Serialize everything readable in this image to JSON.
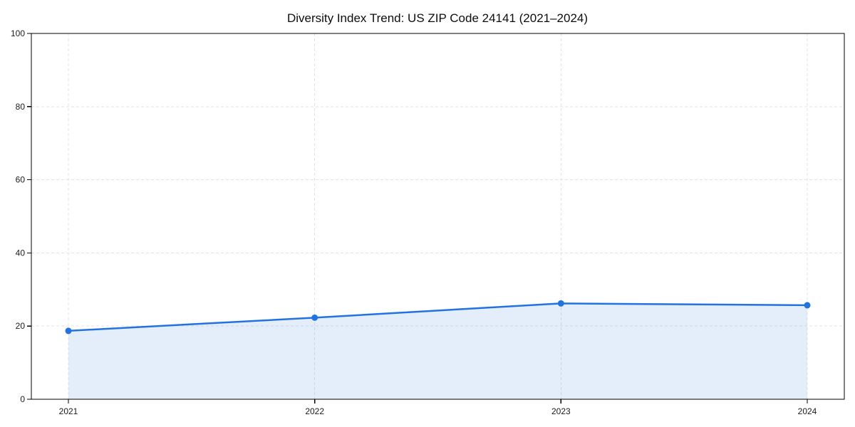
{
  "chart_data": {
    "type": "line",
    "title": "Diversity Index Trend: US ZIP Code 24141 (2021–2024)",
    "x": [
      "2021",
      "2022",
      "2023",
      "2024"
    ],
    "series": [
      {
        "name": "Diversity Index",
        "values": [
          18.7,
          22.3,
          26.2,
          25.7
        ]
      }
    ],
    "xlabel": "",
    "ylabel": "",
    "ylim": [
      0,
      100
    ],
    "yticks": [
      0,
      20,
      40,
      60,
      80,
      100
    ],
    "grid": "dashed-both-axes",
    "legend": "none",
    "area_fill": true,
    "marker": "circle",
    "colors": {
      "line": "#2272e0",
      "marker": "#2272e0",
      "fill": "#2272e0",
      "fill_opacity": "0.12",
      "grid": "#e3e3e3",
      "spine": "#000000",
      "tick_label": "#1a1a1a",
      "title": "#0d0d0d",
      "background": "#ffffff"
    }
  }
}
